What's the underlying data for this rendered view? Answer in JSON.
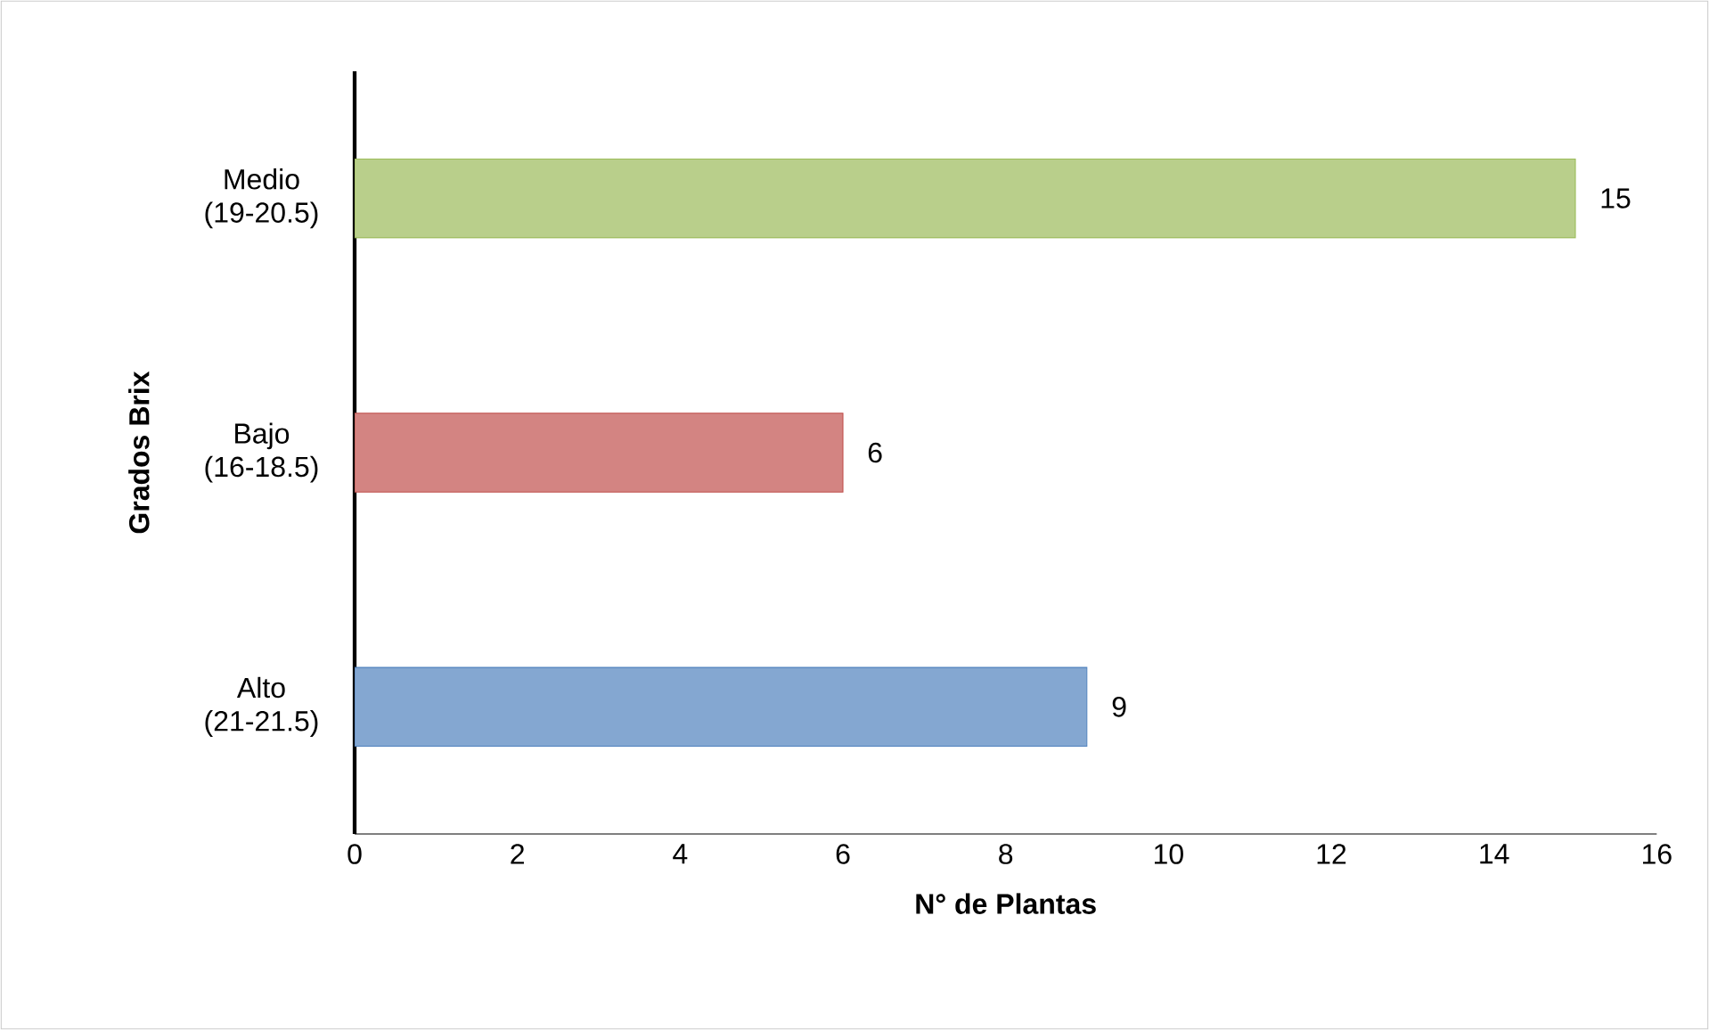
{
  "chart_data": {
    "type": "bar",
    "orientation": "horizontal",
    "xlabel": "N° de Plantas",
    "ylabel": "Grados Brix",
    "categories": [
      "Medio (19-20.5)",
      "Bajo (16-18.5)",
      "Alto (21-21.5)"
    ],
    "values": [
      15,
      6,
      9
    ],
    "colors": [
      "#9bbb59",
      "#c0504d",
      "#4f81bd"
    ],
    "xlim": [
      0,
      16
    ],
    "xticks": [
      0,
      2,
      4,
      6,
      8,
      10,
      12,
      14,
      16
    ],
    "data_labels": true,
    "grid": false
  }
}
